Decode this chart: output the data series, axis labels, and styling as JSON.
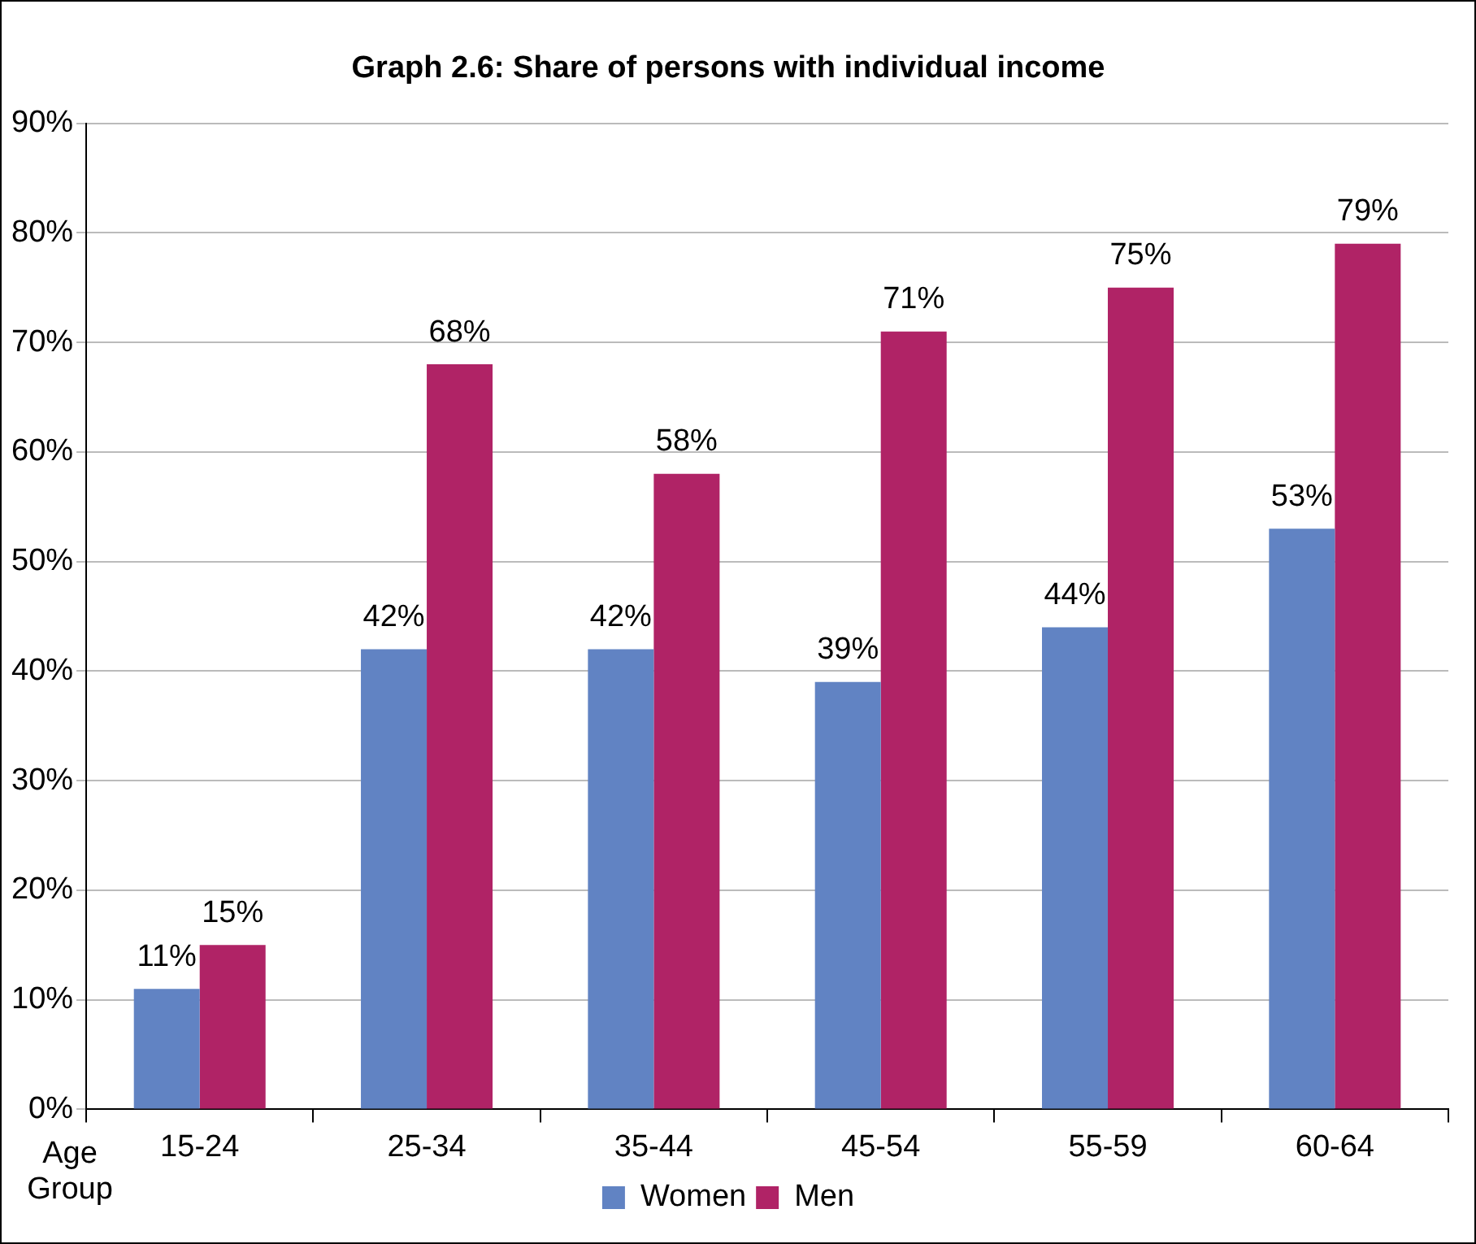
{
  "chart_data": {
    "type": "bar",
    "title": "Graph 2.6: Share of persons with individual income",
    "xlabel": "Age Group",
    "categories": [
      "15-24",
      "25-34",
      "35-44",
      "45-54",
      "55-59",
      "60-64"
    ],
    "series": [
      {
        "name": "Women",
        "color": "#6183c3",
        "values": [
          11,
          42,
          42,
          39,
          44,
          53
        ],
        "value_labels": [
          "11%",
          "42%",
          "42%",
          "39%",
          "44%",
          "53%"
        ]
      },
      {
        "name": "Men",
        "color": "#b02366",
        "values": [
          15,
          68,
          58,
          71,
          75,
          79
        ],
        "value_labels": [
          "15%",
          "68%",
          "58%",
          "71%",
          "75%",
          "79%"
        ]
      }
    ],
    "ylim": [
      0,
      90
    ],
    "yticks": [
      {
        "value": 0,
        "label": "0%"
      },
      {
        "value": 10,
        "label": "10%"
      },
      {
        "value": 20,
        "label": "20%"
      },
      {
        "value": 30,
        "label": "30%"
      },
      {
        "value": 40,
        "label": "40%"
      },
      {
        "value": 50,
        "label": "50%"
      },
      {
        "value": 60,
        "label": "60%"
      },
      {
        "value": 70,
        "label": "70%"
      },
      {
        "value": 80,
        "label": "80%"
      },
      {
        "value": 90,
        "label": "90%"
      }
    ],
    "grid": "y",
    "legend": "bottom"
  }
}
